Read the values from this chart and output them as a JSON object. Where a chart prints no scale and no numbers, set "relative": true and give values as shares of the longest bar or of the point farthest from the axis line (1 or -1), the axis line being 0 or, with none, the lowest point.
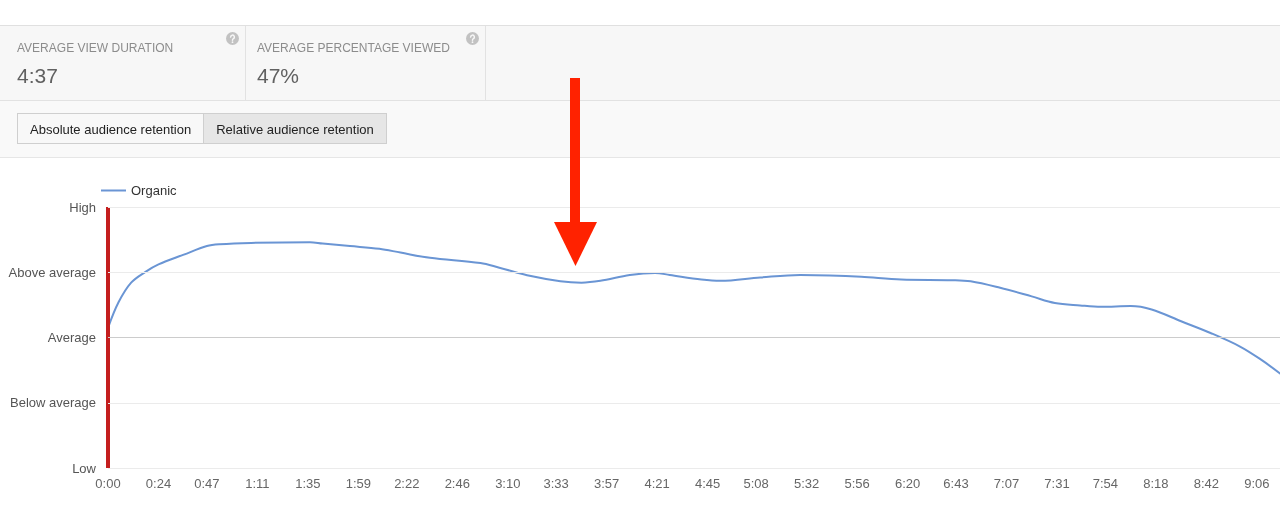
{
  "chart_data": [
    {
      "type": "other",
      "annotations": [
        "AVERAGE VIEW DURATION",
        "4:37",
        "AVERAGE PERCENTAGE VIEWED",
        "47%",
        "Absolute audience retention",
        "Relative audience retention"
      ]
    },
    {
      "type": "line",
      "relative": true,
      "x": [
        0,
        5,
        11,
        18,
        24,
        36,
        47,
        53,
        68,
        96,
        102,
        115,
        129,
        139,
        153,
        177,
        186,
        201,
        215,
        225,
        234,
        248,
        260,
        267,
        282,
        291,
        310,
        329,
        343,
        358,
        377,
        401,
        410,
        424,
        439,
        450,
        462,
        472,
        486,
        496,
        510,
        524,
        538,
        548,
        557
      ],
      "series": [
        {
          "name": "Organic",
          "color": "#6a95d4",
          "values": [
            0.621,
            0.734,
            0.821,
            0.87,
            0.902,
            0.945,
            0.983,
            0.991,
            0.997,
            1,
            0.994,
            0.983,
            0.971,
            0.954,
            0.931,
            0.908,
            0.887,
            0.85,
            0.827,
            0.821,
            0.829,
            0.855,
            0.864,
            0.855,
            0.835,
            0.829,
            0.844,
            0.855,
            0.853,
            0.847,
            0.835,
            0.832,
            0.827,
            0.798,
            0.76,
            0.731,
            0.72,
            0.714,
            0.717,
            0.702,
            0.65,
            0.598,
            0.538,
            0.48,
            0.419
          ]
        }
      ],
      "xlim": [
        0,
        557
      ],
      "xticks": [
        {
          "value": 0,
          "label": "0:00"
        },
        {
          "value": 24,
          "label": "0:24"
        },
        {
          "value": 47,
          "label": "0:47"
        },
        {
          "value": 71,
          "label": "1:11"
        },
        {
          "value": 95,
          "label": "1:35"
        },
        {
          "value": 119,
          "label": "1:59"
        },
        {
          "value": 142,
          "label": "2:22"
        },
        {
          "value": 166,
          "label": "2:46"
        },
        {
          "value": 190,
          "label": "3:10"
        },
        {
          "value": 213,
          "label": "3:33"
        },
        {
          "value": 237,
          "label": "3:57"
        },
        {
          "value": 261,
          "label": "4:21"
        },
        {
          "value": 285,
          "label": "4:45"
        },
        {
          "value": 308,
          "label": "5:08"
        },
        {
          "value": 332,
          "label": "5:32"
        },
        {
          "value": 356,
          "label": "5:56"
        },
        {
          "value": 380,
          "label": "6:20"
        },
        {
          "value": 403,
          "label": "6:43"
        },
        {
          "value": 427,
          "label": "7:07"
        },
        {
          "value": 451,
          "label": "7:31"
        },
        {
          "value": 474,
          "label": "7:54"
        },
        {
          "value": 498,
          "label": "8:18"
        },
        {
          "value": 522,
          "label": "8:42"
        },
        {
          "value": 546,
          "label": "9:06"
        }
      ],
      "legend": "top left",
      "marker": "none",
      "line_style": "solid",
      "ref_lines": [
        {
          "axis": "x",
          "value": 0,
          "color": "#c41e1e"
        },
        {
          "axis": "y",
          "value": 1.156,
          "label": "High",
          "color": "#ebebeb"
        },
        {
          "axis": "y",
          "value": 0.867,
          "label": "Above average",
          "color": "#ebebeb"
        },
        {
          "axis": "y",
          "value": 0.578,
          "label": "Average",
          "color": "#cccccc"
        },
        {
          "axis": "y",
          "value": 0.289,
          "label": "Below average",
          "color": "#ebebeb"
        },
        {
          "axis": "y",
          "value": 0,
          "label": "Low",
          "color": "#ebebeb"
        }
      ]
    }
  ]
}
